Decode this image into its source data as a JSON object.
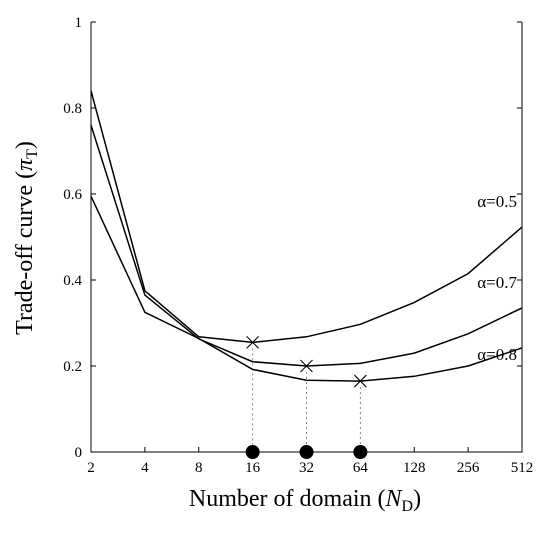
{
  "chart_data": {
    "type": "line",
    "xlabel": "Number of domain (N_D)",
    "xlabel_parts": {
      "main": "Number of domain (",
      "italic": "N",
      "sub": "D",
      "close": ")"
    },
    "ylabel": "Trade-off curve (π_T)",
    "ylabel_parts": {
      "main": "Trade-off curve (",
      "italic": "π",
      "sub": "T",
      "close": ")"
    },
    "x_scale": "log2",
    "x": [
      2,
      4,
      8,
      16,
      32,
      64,
      128,
      256,
      512
    ],
    "x_tick_labels": [
      "2",
      "4",
      "8",
      "16",
      "32",
      "64",
      "128",
      "256",
      "512"
    ],
    "ylim": [
      0,
      1
    ],
    "y_ticks": [
      0,
      0.2,
      0.4,
      0.6,
      0.8,
      1
    ],
    "y_tick_labels": [
      "0",
      "0.2",
      "0.4",
      "0.6",
      "0.8",
      "1"
    ],
    "grid": false,
    "series": [
      {
        "name": "α=0.5",
        "values": [
          0.84,
          0.375,
          0.268,
          0.255,
          0.268,
          0.297,
          0.348,
          0.415,
          0.523
        ]
      },
      {
        "name": "α=0.7",
        "values": [
          0.76,
          0.365,
          0.263,
          0.21,
          0.2,
          0.206,
          0.23,
          0.275,
          0.335
        ]
      },
      {
        "name": "α=0.8",
        "values": [
          0.595,
          0.325,
          0.264,
          0.192,
          0.167,
          0.165,
          0.176,
          0.2,
          0.242
        ]
      }
    ],
    "optimum_markers": [
      {
        "series": "α=0.5",
        "x": 16,
        "y": 0.255
      },
      {
        "series": "α=0.7",
        "x": 32,
        "y": 0.2
      },
      {
        "series": "α=0.8",
        "x": 64,
        "y": 0.165
      }
    ],
    "optimum_dots_x": [
      16,
      32,
      64
    ]
  }
}
